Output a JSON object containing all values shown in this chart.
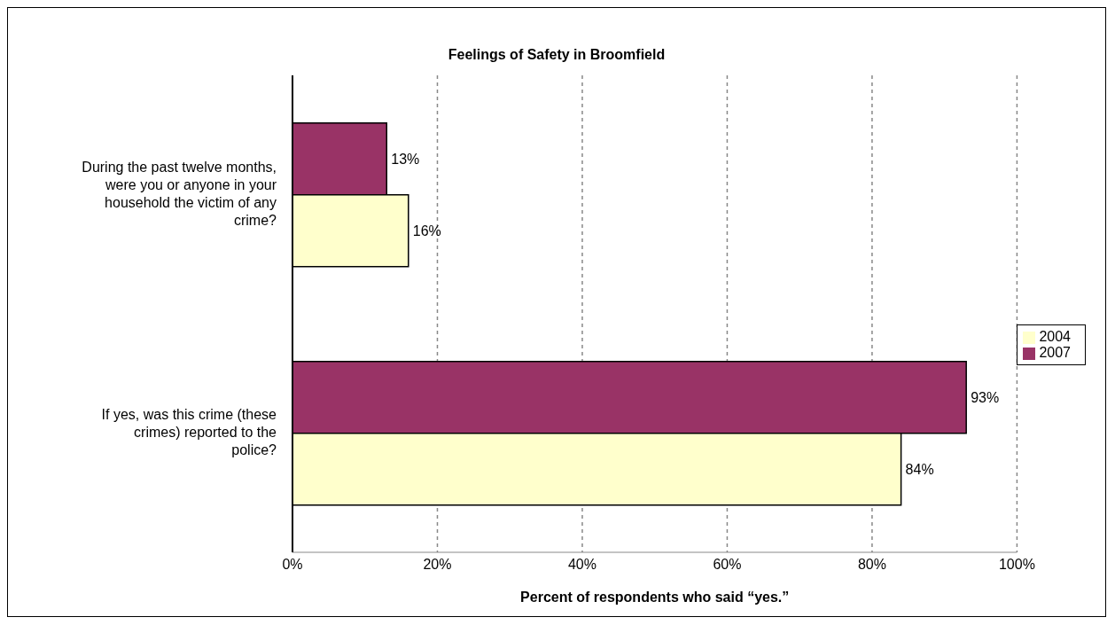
{
  "chart_data": {
    "type": "bar",
    "orientation": "horizontal",
    "title": "Feelings of Safety in Broomfield",
    "xlabel": "Percent of respondents who said “yes.”",
    "categories": [
      "During the past twelve months, were you or anyone in your household the victim of any crime?",
      "If yes, was this crime (these crimes) reported to the police?"
    ],
    "series": [
      {
        "name": "2007",
        "color": "#993366",
        "values": [
          13,
          93
        ],
        "value_labels": [
          "13%",
          "93%"
        ]
      },
      {
        "name": "2004",
        "color": "#ffffcc",
        "values": [
          16,
          84
        ],
        "value_labels": [
          "16%",
          "84%"
        ]
      }
    ],
    "xlim": [
      0,
      100
    ],
    "xticks": [
      {
        "value": 0,
        "label": "0%"
      },
      {
        "value": 20,
        "label": "20%"
      },
      {
        "value": 40,
        "label": "40%"
      },
      {
        "value": 60,
        "label": "60%"
      },
      {
        "value": 80,
        "label": "80%"
      },
      {
        "value": 100,
        "label": "100%"
      }
    ],
    "grid": "x",
    "legend": "right"
  }
}
